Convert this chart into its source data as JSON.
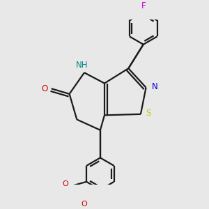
{
  "bg_color": "#e8e8e8",
  "bond_color": "#1a1a1a",
  "bond_width": 1.6,
  "atom_colors": {
    "N": "#0000cc",
    "O": "#cc0000",
    "S": "#cccc00",
    "F": "#cc00cc",
    "NH": "#008888"
  },
  "font_size": 8.5
}
